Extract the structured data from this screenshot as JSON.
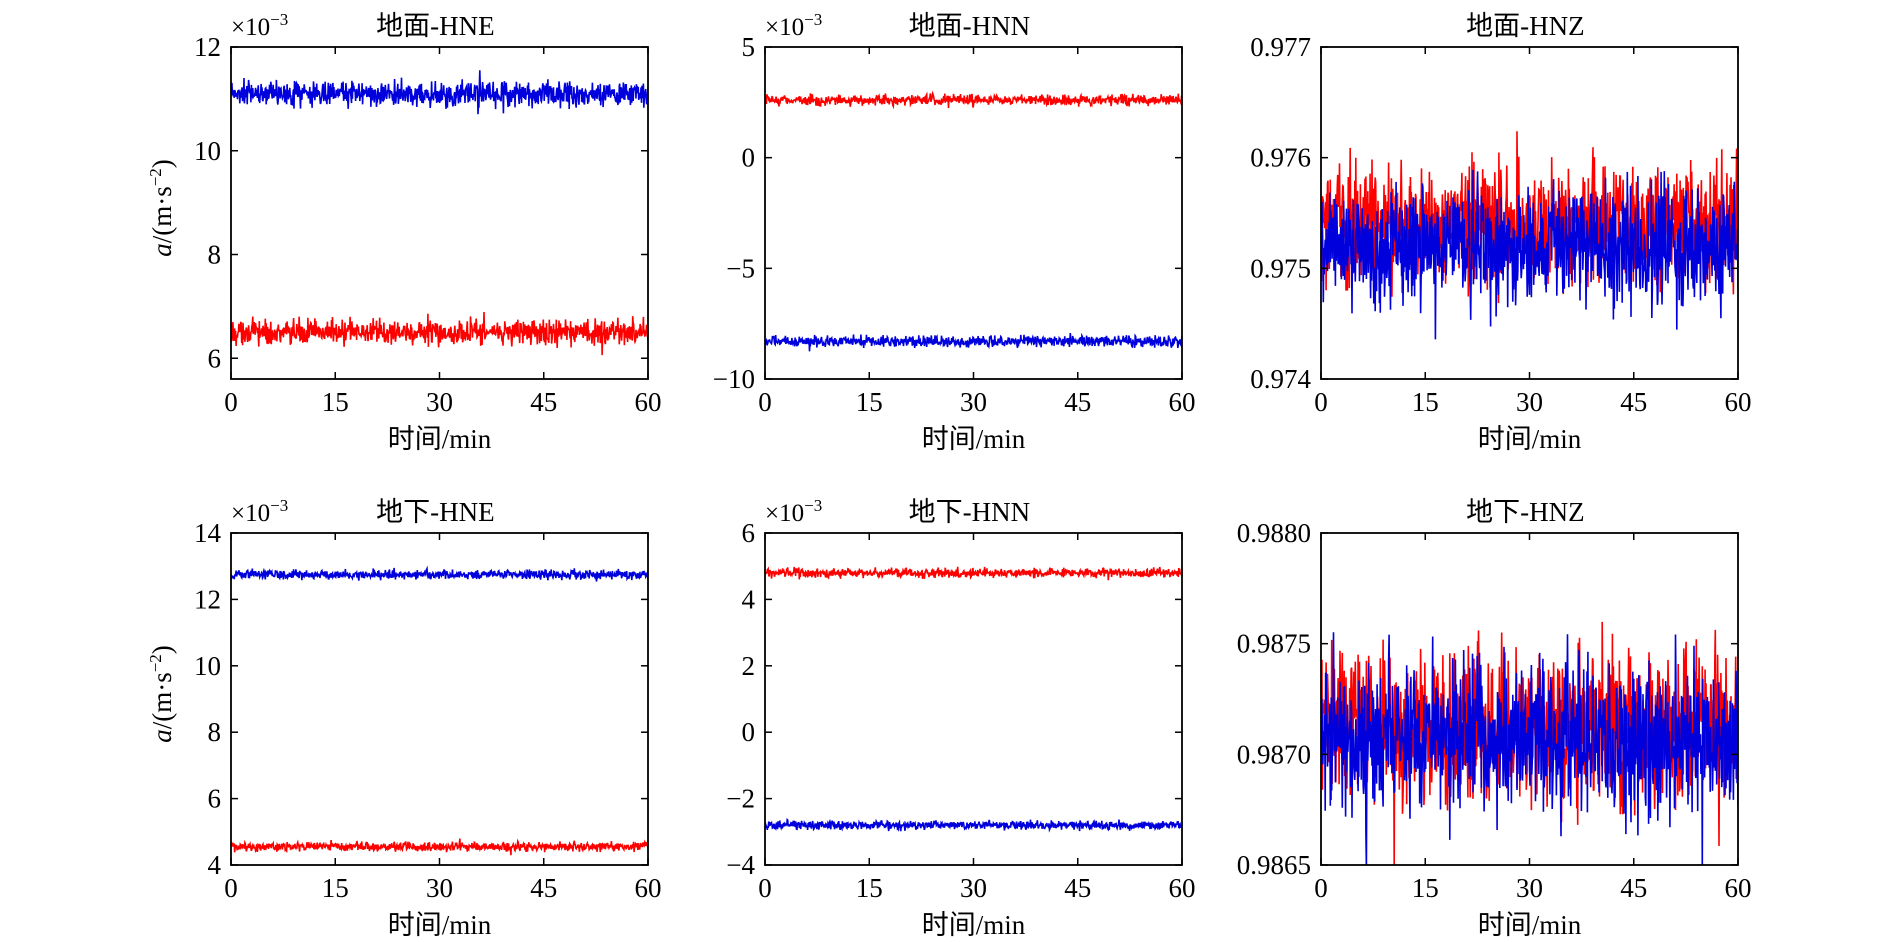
{
  "colors": {
    "series_a": "#ff0000",
    "series_b": "#0000dd",
    "axes": "#000000"
  },
  "chart_data": [
    {
      "type": "line",
      "title": "地面-HNE",
      "xlabel": "时间/min",
      "ylabel": "a/(m·s⁻²)",
      "ylabel_prefix": "a",
      "ylabel_rest": "/(m·s",
      "ylabel_sup": "−2",
      "ylabel_close": ")",
      "multiplier": "×10",
      "multiplier_sup": "−3",
      "xlim": [
        0,
        60
      ],
      "ylim": [
        5.6,
        12
      ],
      "xticks": [
        "0",
        "15",
        "30",
        "45",
        "60"
      ],
      "yticks": [
        "6",
        "8",
        "10",
        "12"
      ],
      "series": [
        {
          "color": "#ff0000",
          "mean": 6.5,
          "amp": 0.35
        },
        {
          "color": "#0000dd",
          "mean": 11.1,
          "amp": 0.35
        }
      ]
    },
    {
      "type": "line",
      "title": "地面-HNN",
      "xlabel": "时间/min",
      "multiplier": "×10",
      "multiplier_sup": "−3",
      "xlim": [
        0,
        60
      ],
      "ylim": [
        -10,
        5
      ],
      "xticks": [
        "0",
        "15",
        "30",
        "45",
        "60"
      ],
      "yticks": [
        "5",
        "0",
        "−5",
        "−10"
      ],
      "series": [
        {
          "color": "#ff0000",
          "mean": 2.6,
          "amp": 0.35
        },
        {
          "color": "#0000dd",
          "mean": -8.3,
          "amp": 0.35
        }
      ]
    },
    {
      "type": "line",
      "title": "地面-HNZ",
      "xlabel": "时间/min",
      "xlim": [
        0,
        60
      ],
      "ylim": [
        0.974,
        0.977
      ],
      "xticks": [
        "0",
        "15",
        "30",
        "45",
        "60"
      ],
      "yticks": [
        "0.977",
        "0.976",
        "0.975",
        "0.974"
      ],
      "series": [
        {
          "color": "#ff0000",
          "mean": 0.9754,
          "amp": 0.0008
        },
        {
          "color": "#0000dd",
          "mean": 0.9752,
          "amp": 0.0008
        }
      ]
    },
    {
      "type": "line",
      "title": "地下-HNE",
      "xlabel": "时间/min",
      "ylabel": "a/(m·s⁻²)",
      "ylabel_prefix": "a",
      "ylabel_rest": "/(m·s",
      "ylabel_sup": "−2",
      "ylabel_close": ")",
      "multiplier": "×10",
      "multiplier_sup": "−3",
      "xlim": [
        0,
        60
      ],
      "ylim": [
        4,
        14
      ],
      "xticks": [
        "0",
        "15",
        "30",
        "45",
        "60"
      ],
      "yticks": [
        "14",
        "12",
        "10",
        "8",
        "6",
        "4"
      ],
      "series": [
        {
          "color": "#ff0000",
          "mean": 4.55,
          "amp": 0.2
        },
        {
          "color": "#0000dd",
          "mean": 12.75,
          "amp": 0.2
        }
      ]
    },
    {
      "type": "line",
      "title": "地下-HNN",
      "xlabel": "时间/min",
      "multiplier": "×10",
      "multiplier_sup": "−3",
      "xlim": [
        0,
        60
      ],
      "ylim": [
        -4,
        6
      ],
      "xticks": [
        "0",
        "15",
        "30",
        "45",
        "60"
      ],
      "yticks": [
        "6",
        "4",
        "2",
        "0",
        "−2",
        "−4"
      ],
      "series": [
        {
          "color": "#ff0000",
          "mean": 4.8,
          "amp": 0.2
        },
        {
          "color": "#0000dd",
          "mean": -2.8,
          "amp": 0.2
        }
      ]
    },
    {
      "type": "line",
      "title": "地下-HNZ",
      "xlabel": "时间/min",
      "xlim": [
        0,
        60
      ],
      "ylim": [
        0.9865,
        0.988
      ],
      "xticks": [
        "0",
        "15",
        "30",
        "45",
        "60"
      ],
      "yticks": [
        "0.9880",
        "0.9875",
        "0.9870",
        "0.9865"
      ],
      "series": [
        {
          "color": "#ff0000",
          "mean": 0.98712,
          "amp": 0.0005
        },
        {
          "color": "#0000dd",
          "mean": 0.98707,
          "amp": 0.0005
        }
      ]
    }
  ]
}
